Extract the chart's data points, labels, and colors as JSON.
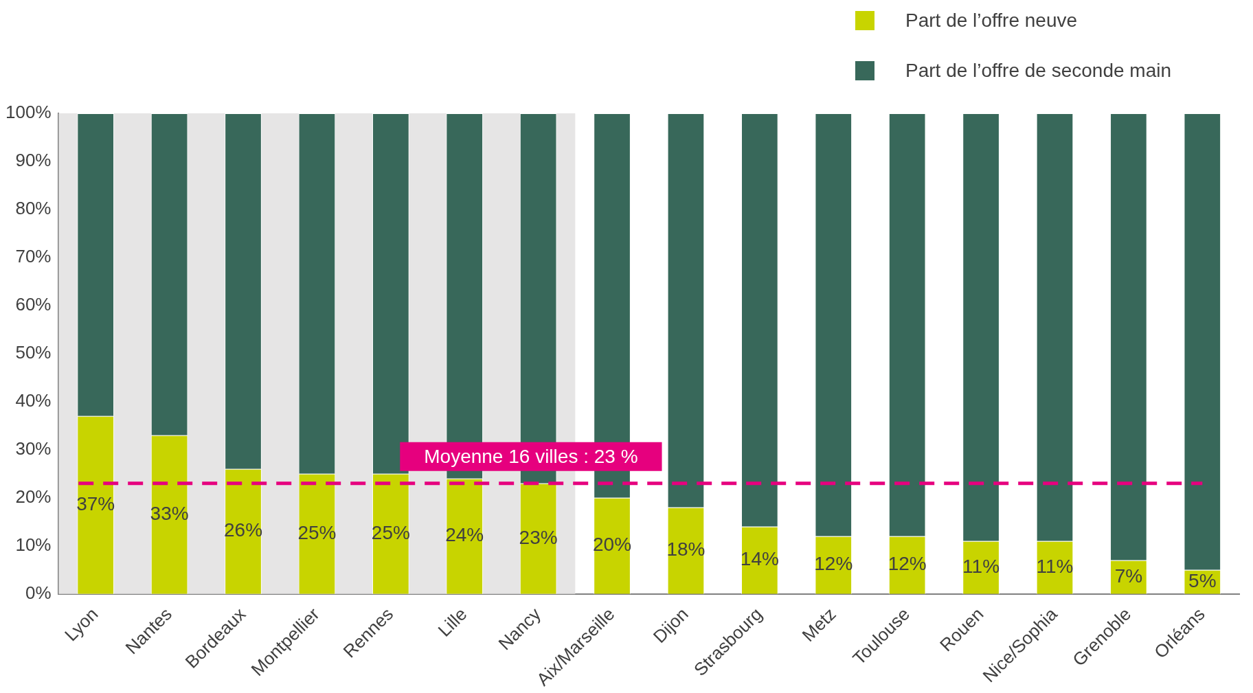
{
  "chart_data": {
    "type": "bar",
    "stacked": true,
    "legend": "top right",
    "grid": false,
    "data_labels": false,
    "categories": [
      "Lyon",
      "Nantes",
      "Bordeaux",
      "Montpellier",
      "Rennes",
      "Lille",
      "Nancy",
      "Aix/Marseille",
      "Dijon",
      "Strasbourg",
      "Metz",
      "Toulouse",
      "Rouen",
      "Nice/Sophia",
      "Grenoble",
      "Orléans"
    ],
    "series": [
      {
        "name": "Part de l’offre neuve",
        "color": "#c8d400",
        "values": [
          37,
          33,
          26,
          25,
          25,
          24,
          23,
          20,
          18,
          14,
          12,
          12,
          11,
          11,
          7,
          5
        ],
        "value_labels": [
          "37%",
          "33%",
          "26%",
          "25%",
          "25%",
          "24%",
          "23%",
          "20%",
          "18%",
          "14%",
          "12%",
          "12%",
          "11%",
          "11%",
          "7%",
          "5%"
        ]
      },
      {
        "name": "Part de l’offre de seconde main",
        "color": "#38685a",
        "values": [
          63,
          67,
          74,
          75,
          75,
          76,
          77,
          80,
          82,
          86,
          88,
          88,
          89,
          89,
          93,
          95
        ]
      }
    ],
    "ylim": [
      0,
      100
    ],
    "yticks": [
      {
        "value": 0,
        "label": "0%"
      },
      {
        "value": 10,
        "label": "10%"
      },
      {
        "value": 20,
        "label": "20%"
      },
      {
        "value": 30,
        "label": "30%"
      },
      {
        "value": 40,
        "label": "40%"
      },
      {
        "value": 50,
        "label": "50%"
      },
      {
        "value": 60,
        "label": "60%"
      },
      {
        "value": 70,
        "label": "70%"
      },
      {
        "value": 80,
        "label": "80%"
      },
      {
        "value": 90,
        "label": "90%"
      },
      {
        "value": 100,
        "label": "100%"
      }
    ],
    "ref_lines": [
      {
        "axis": "y",
        "value": 23,
        "label": "Moyenne 16 villes : 23 %",
        "color": "#e6007e",
        "line_style": "dashed"
      }
    ],
    "bands": [
      {
        "axis": "x",
        "from": "Lyon",
        "to": "Nancy",
        "color": "#e6e5e5"
      }
    ]
  }
}
